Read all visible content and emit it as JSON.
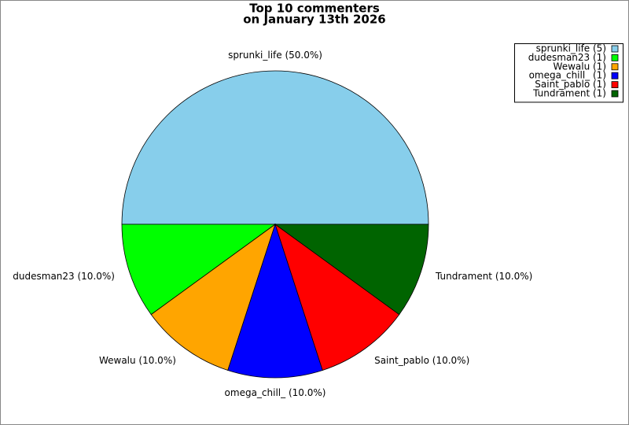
{
  "chart_data": {
    "type": "pie",
    "title": [
      "Top 10 commenters",
      "on January 13th 2026"
    ],
    "legend_labels": [
      "sprunki_life (5)",
      "dudesman23 (1)",
      "Wewalu (1)",
      "omega_chill_ (1)",
      "Saint_pablo (1)",
      "Tundrament (1)"
    ],
    "values": [
      50,
      10,
      10,
      10,
      10,
      10
    ],
    "value_labels": [
      "sprunki_life (50.0%)",
      "dudesman23 (10.0%)",
      "Wewalu (10.0%)",
      "omega_chill_ (10.0%)",
      "Saint_pablo (10.0%)",
      "Tundrament (10.0%)"
    ],
    "colors": [
      "#87ceeb",
      "#00ff00",
      "#ffa500",
      "#0000ff",
      "#ff0000",
      "#006400"
    ],
    "startangle": 0,
    "counterclock": true,
    "legend": "upper right"
  }
}
